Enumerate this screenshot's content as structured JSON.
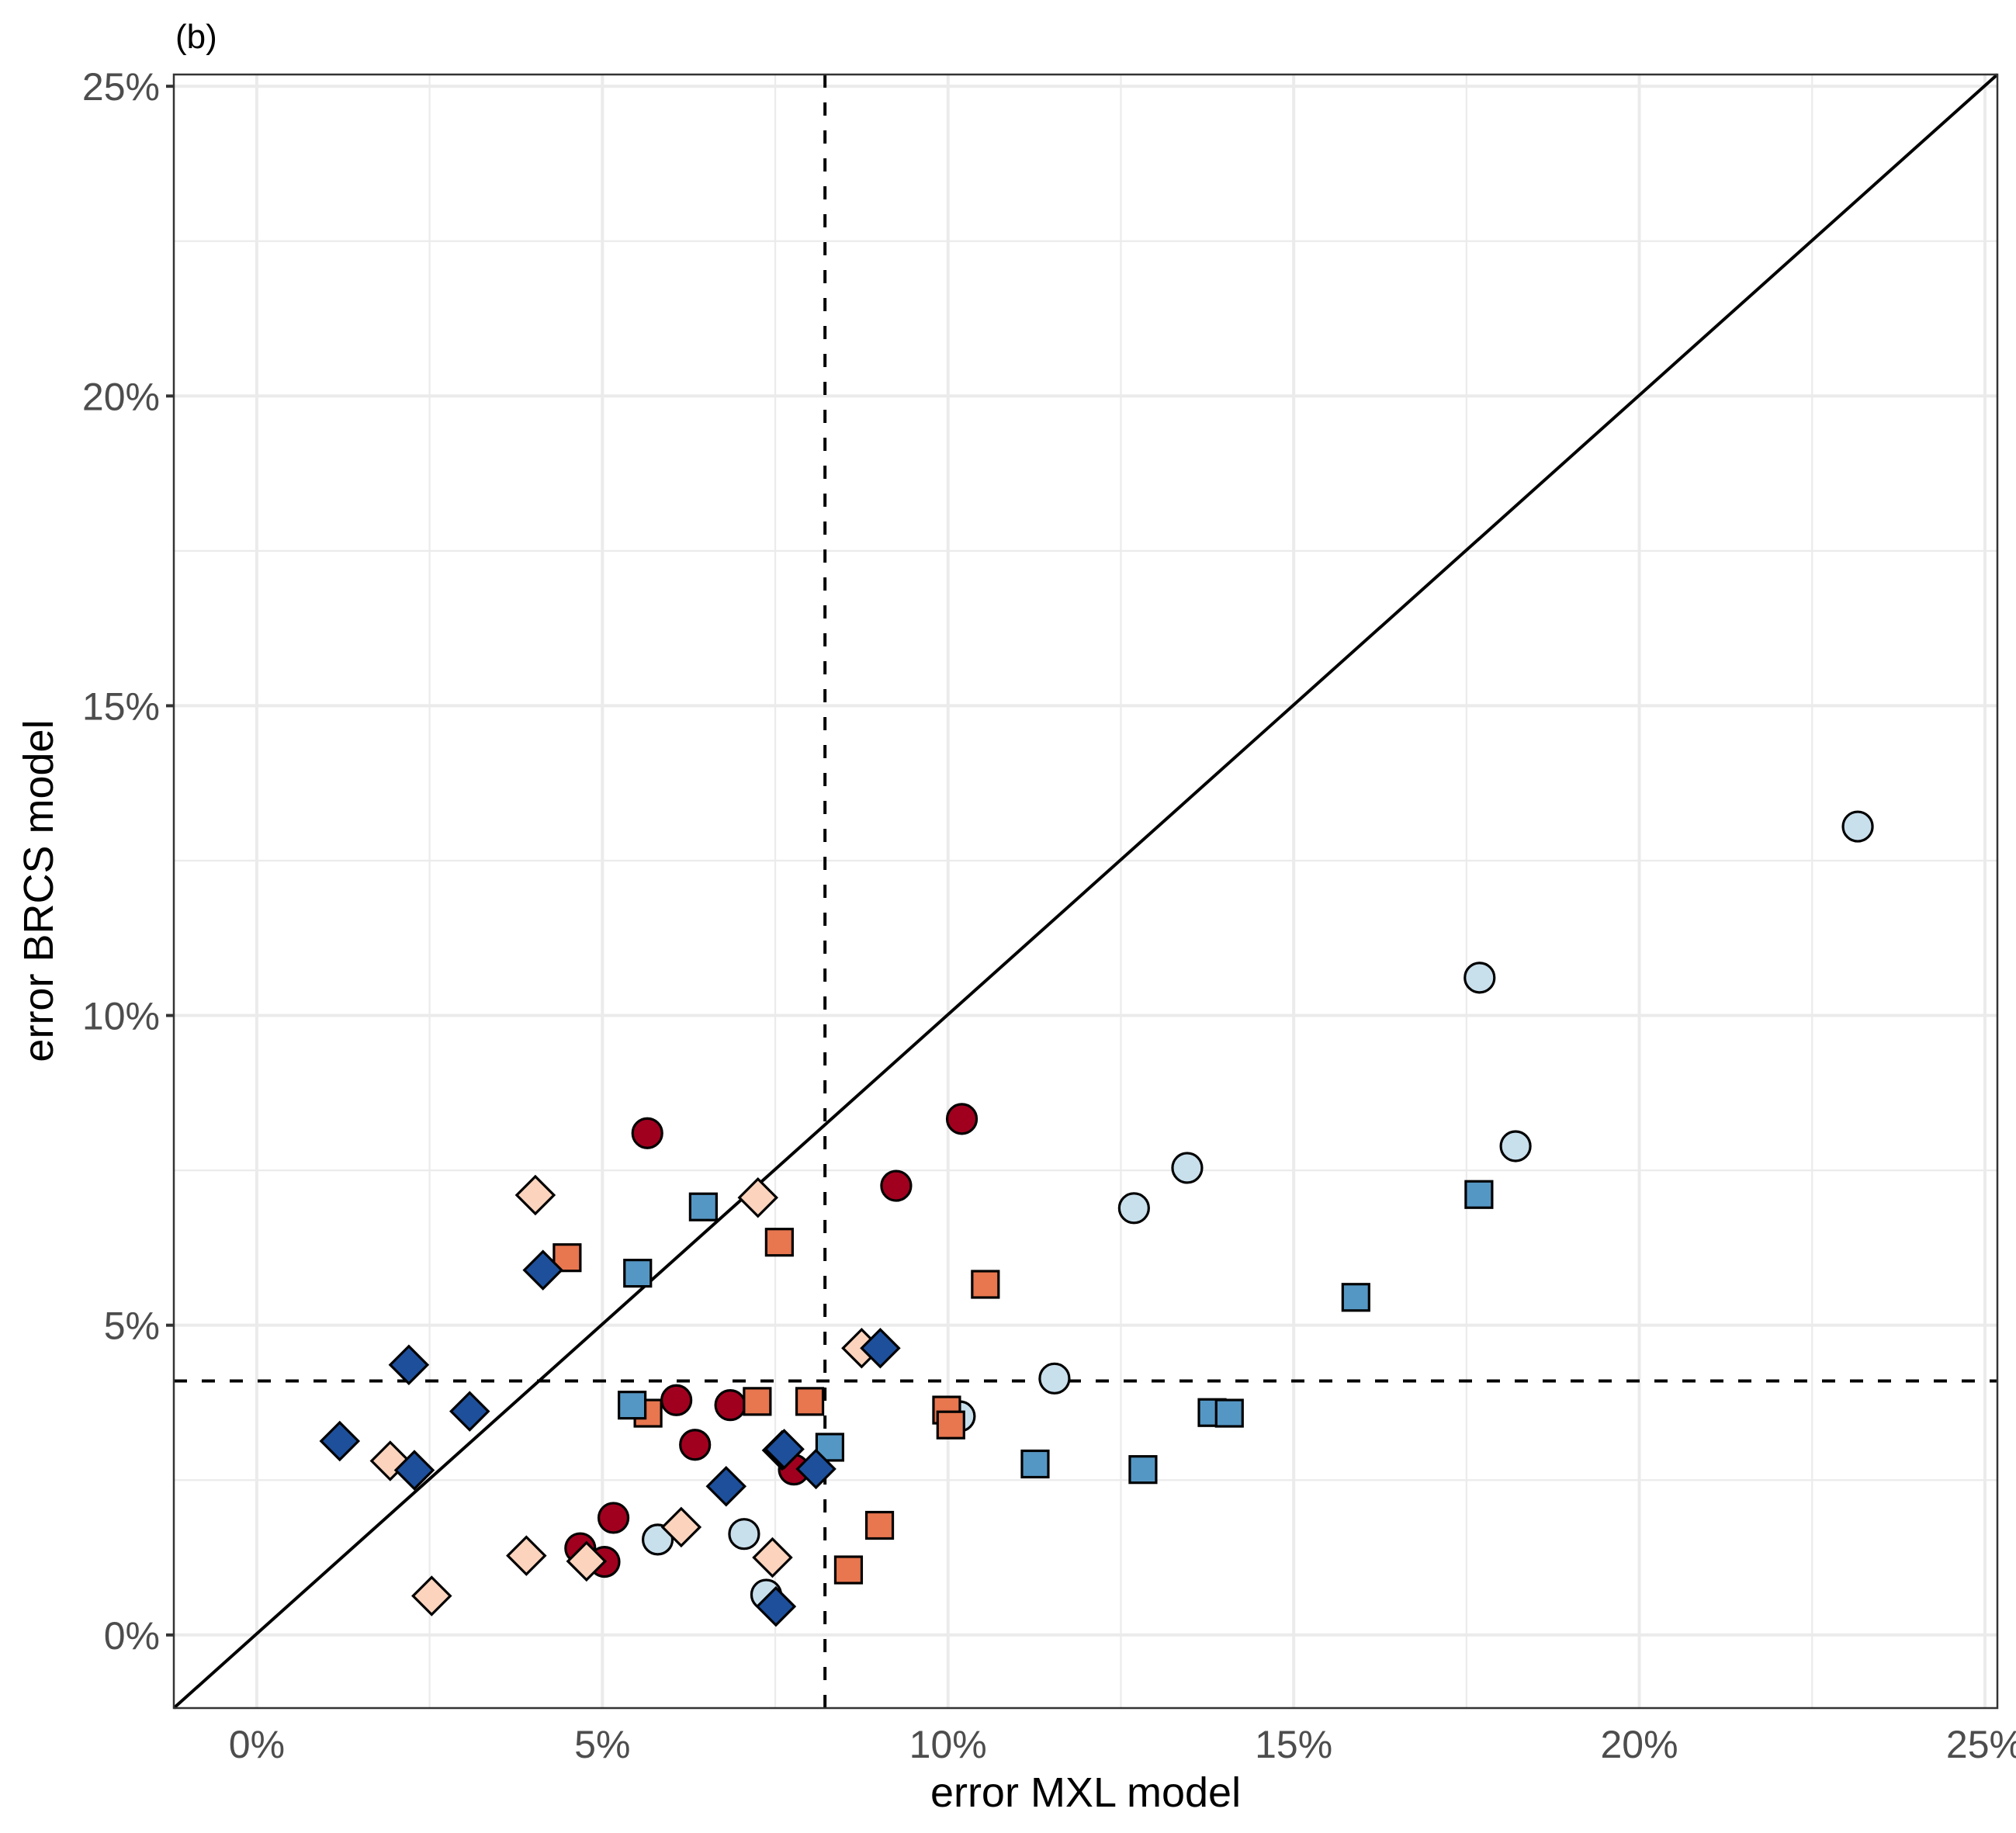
{
  "chart_data": {
    "type": "scatter",
    "panel_tag": "(b)",
    "title": "",
    "xlabel": "error MXL model",
    "ylabel": "error BRCS model",
    "xlim": [
      -1.2,
      25.18
    ],
    "ylim": [
      -1.18,
      25.19
    ],
    "x_ticks": [
      0,
      5,
      10,
      15,
      20,
      25
    ],
    "y_ticks": [
      0,
      5,
      10,
      15,
      20,
      25
    ],
    "x_tick_labels": [
      "0%",
      "5%",
      "10%",
      "15%",
      "20%",
      "25%"
    ],
    "y_tick_labels": [
      "0%",
      "5%",
      "10%",
      "15%",
      "20%",
      "25%"
    ],
    "grid": true,
    "legend": "none",
    "reference_lines": {
      "diagonal": "y = x",
      "vertical_dashed_x": 8.22,
      "horizontal_dashed_y": 4.1
    },
    "series": [
      {
        "name": "dark-red-circles",
        "marker": "circle",
        "color": "#A0001E",
        "points": [
          [
            5.65,
            8.1
          ],
          [
            10.2,
            8.33
          ],
          [
            9.25,
            7.25
          ],
          [
            6.07,
            3.79
          ],
          [
            6.85,
            3.71
          ],
          [
            6.34,
            3.07
          ],
          [
            7.77,
            2.67
          ],
          [
            5.16,
            1.89
          ],
          [
            4.68,
            1.4
          ],
          [
            5.03,
            1.18
          ]
        ]
      },
      {
        "name": "light-blue-circles",
        "marker": "circle",
        "color": "#C8DFEC",
        "points": [
          [
            23.16,
            13.05
          ],
          [
            17.69,
            10.61
          ],
          [
            18.21,
            7.89
          ],
          [
            13.46,
            7.54
          ],
          [
            12.69,
            6.89
          ],
          [
            11.54,
            4.14
          ],
          [
            10.17,
            3.53
          ],
          [
            5.8,
            1.54
          ],
          [
            7.05,
            1.63
          ],
          [
            7.37,
            0.65
          ]
        ]
      },
      {
        "name": "orange-squares",
        "marker": "square",
        "color": "#E8764F",
        "points": [
          [
            4.49,
            6.09
          ],
          [
            7.56,
            6.34
          ],
          [
            10.54,
            5.66
          ],
          [
            5.66,
            3.58
          ],
          [
            7.24,
            3.77
          ],
          [
            8.0,
            3.77
          ],
          [
            9.98,
            3.63
          ],
          [
            10.04,
            3.39
          ],
          [
            9.01,
            1.77
          ],
          [
            8.56,
            1.05
          ]
        ]
      },
      {
        "name": "blue-squares",
        "marker": "square",
        "color": "#5597C4",
        "points": [
          [
            6.46,
            6.91
          ],
          [
            5.51,
            5.84
          ],
          [
            5.43,
            3.71
          ],
          [
            8.29,
            3.03
          ],
          [
            11.26,
            2.76
          ],
          [
            12.82,
            2.67
          ],
          [
            13.82,
            3.59
          ],
          [
            14.07,
            3.58
          ],
          [
            15.9,
            5.45
          ],
          [
            17.68,
            7.11
          ]
        ]
      },
      {
        "name": "peach-diamonds",
        "marker": "diamond",
        "color": "#FCD3BC",
        "points": [
          [
            4.03,
            7.1
          ],
          [
            7.25,
            7.06
          ],
          [
            8.75,
            4.63
          ],
          [
            1.93,
            2.81
          ],
          [
            6.14,
            1.74
          ],
          [
            3.9,
            1.28
          ],
          [
            4.77,
            1.19
          ],
          [
            7.46,
            1.25
          ],
          [
            2.53,
            0.63
          ]
        ]
      },
      {
        "name": "dark-blue-diamonds",
        "marker": "diamond",
        "color": "#1D4F9B",
        "points": [
          [
            4.14,
            5.89
          ],
          [
            9.02,
            4.63
          ],
          [
            2.2,
            4.36
          ],
          [
            3.08,
            3.61
          ],
          [
            1.2,
            3.13
          ],
          [
            2.28,
            2.66
          ],
          [
            6.79,
            2.4
          ],
          [
            7.6,
            2.98
          ],
          [
            7.63,
            3.0
          ],
          [
            8.09,
            2.68
          ],
          [
            7.51,
            0.46
          ]
        ]
      }
    ]
  }
}
